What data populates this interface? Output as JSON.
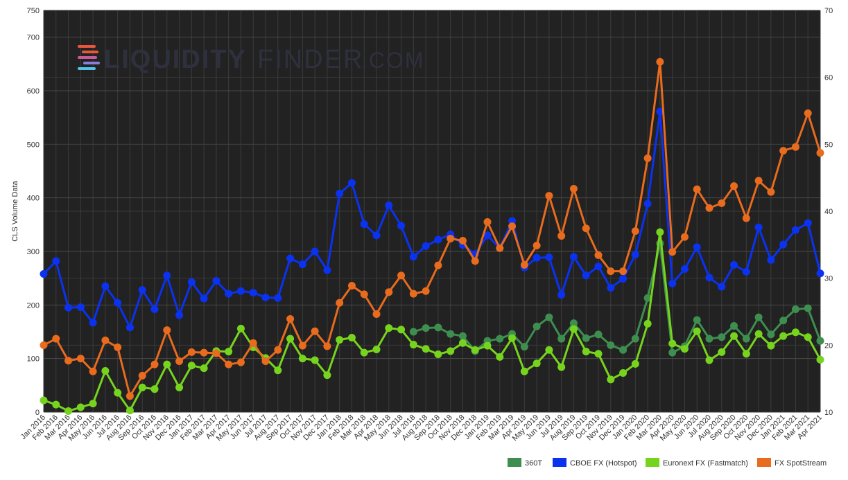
{
  "watermark": {
    "brand": "LIQUIDITY",
    "brand2": "FINDER",
    "suffix": ".COM"
  },
  "chart_data": {
    "type": "line",
    "ylabel": "CLS Volume Data",
    "xlabel": "",
    "title": "",
    "ylim": [
      0,
      750
    ],
    "y2lim": [
      10,
      70
    ],
    "y_ticks": [
      0,
      100,
      200,
      300,
      400,
      500,
      600,
      700,
      750
    ],
    "y2_ticks": [
      10,
      20,
      30,
      40,
      50,
      60,
      70
    ],
    "grid": true,
    "legend_position": "bottom-right",
    "background": "#222222",
    "categories": [
      "Jan 2016",
      "Feb 2016",
      "Mar 2016",
      "Apr 2016",
      "May 2016",
      "Jun 2016",
      "Jul 2016",
      "Aug 2016",
      "Sep 2016",
      "Oct 2016",
      "Nov 2016",
      "Dec 2016",
      "Jan 2017",
      "Feb 2017",
      "Mar 2017",
      "Apr 2017",
      "May 2017",
      "Jun 2017",
      "Jul 2017",
      "Aug 2017",
      "Sep 2017",
      "Oct 2017",
      "Nov 2017",
      "Dec 2017",
      "Jan 2018",
      "Feb 2018",
      "Mar 2018",
      "Apr 2018",
      "May 2018",
      "Jun 2018",
      "Jul 2018",
      "Aug 2018",
      "Sep 2018",
      "Oct 2018",
      "Nov 2018",
      "Dec 2018",
      "Jan 2019",
      "Feb 2019",
      "Mar 2019",
      "Apr 2019",
      "May 2019",
      "Jun 2019",
      "Jul 2019",
      "Aug 2019",
      "Sep 2019",
      "Oct 2019",
      "Nov 2019",
      "Dec 2019",
      "Jan 2020",
      "Feb 2020",
      "Mar 2020",
      "Apr 2020",
      "May 2020",
      "Jun 2020",
      "Jul 2020",
      "Aug 2020",
      "Sep 2020",
      "Oct 2020",
      "Nov 2020",
      "Dec 2020",
      "Jan 2021",
      "Feb 2021",
      "Mar 2021",
      "Apr 2021"
    ],
    "series": [
      {
        "name": "360T",
        "color": "#3e8e4f",
        "values": [
          null,
          null,
          null,
          null,
          null,
          null,
          null,
          null,
          null,
          null,
          null,
          null,
          null,
          null,
          null,
          null,
          null,
          null,
          null,
          null,
          null,
          null,
          null,
          null,
          null,
          null,
          null,
          null,
          null,
          null,
          150,
          157,
          158,
          146,
          142,
          114,
          133,
          137,
          146,
          122,
          160,
          177,
          137,
          166,
          138,
          145,
          125,
          116,
          137,
          213,
          315,
          111,
          123,
          172,
          137,
          140,
          161,
          137,
          177,
          145,
          171,
          192,
          194,
          133
        ]
      },
      {
        "name": "CBOE FX (Hotspot)",
        "color": "#0a32f0",
        "values": [
          258,
          282,
          195,
          196,
          167,
          235,
          204,
          158,
          228,
          192,
          255,
          181,
          243,
          212,
          245,
          221,
          226,
          223,
          214,
          213,
          287,
          276,
          300,
          265,
          408,
          428,
          351,
          330,
          386,
          348,
          290,
          310,
          322,
          332,
          312,
          295,
          330,
          306,
          357,
          270,
          288,
          289,
          219,
          290,
          255,
          272,
          232,
          249,
          294,
          389,
          561,
          240,
          267,
          308,
          251,
          234,
          275,
          262,
          345,
          284,
          313,
          340,
          353,
          259
        ]
      },
      {
        "name": "Euronext FX (Fastmatch)",
        "color": "#77d41e",
        "values": [
          22,
          14,
          2,
          9,
          16,
          77,
          36,
          3,
          46,
          43,
          89,
          46,
          87,
          82,
          114,
          113,
          156,
          121,
          101,
          78,
          137,
          100,
          97,
          69,
          135,
          139,
          111,
          117,
          157,
          154,
          126,
          118,
          108,
          114,
          129,
          116,
          124,
          103,
          138,
          76,
          91,
          116,
          84,
          155,
          113,
          109,
          61,
          73,
          90,
          165,
          336,
          128,
          118,
          151,
          97,
          112,
          142,
          109,
          146,
          124,
          142,
          149,
          140,
          98
        ]
      },
      {
        "name": "FX SpotStream",
        "color": "#e86b1e",
        "values": [
          125,
          137,
          96,
          100,
          76,
          134,
          121,
          30,
          68,
          89,
          153,
          95,
          112,
          111,
          110,
          89,
          93,
          129,
          95,
          116,
          174,
          124,
          151,
          123,
          204,
          236,
          220,
          183,
          224,
          255,
          221,
          226,
          274,
          324,
          320,
          282,
          355,
          306,
          347,
          275,
          311,
          404,
          329,
          417,
          343,
          293,
          263,
          263,
          338,
          474,
          654,
          299,
          327,
          416,
          381,
          390,
          422,
          362,
          432,
          411,
          488,
          495,
          558,
          484
        ]
      }
    ]
  }
}
